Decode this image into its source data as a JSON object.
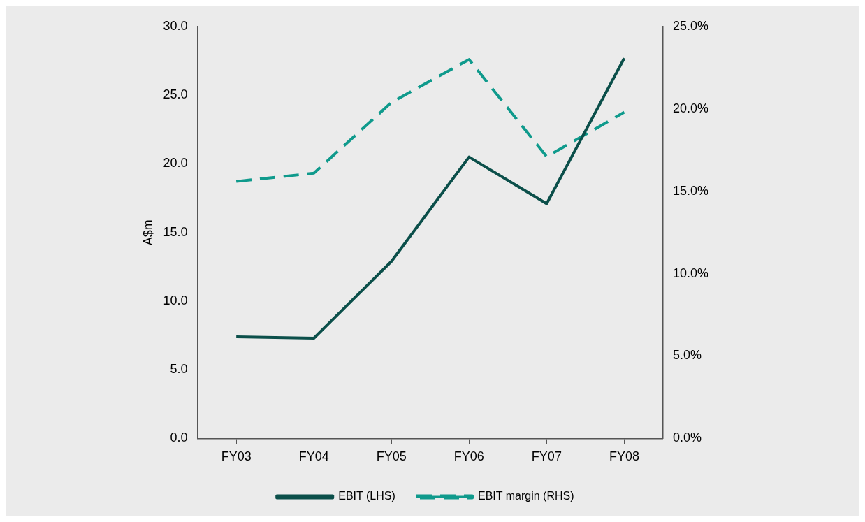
{
  "chart_data": {
    "type": "line",
    "ylabel": "A$m",
    "categories": [
      "FY03",
      "FY04",
      "FY05",
      "FY06",
      "FY07",
      "FY08"
    ],
    "series": [
      {
        "name": "EBIT (LHS)",
        "color": "#0b4f4a",
        "values": [
          7.4,
          7.3,
          12.9,
          20.5,
          17.1,
          27.7
        ],
        "line_style": "solid"
      },
      {
        "name": "EBIT margin (RHS)",
        "color": "#0f9a8c",
        "values": [
          15.6,
          16.1,
          20.4,
          23.0,
          17.1,
          19.8
        ],
        "axis": "y2",
        "line_style": "dashed"
      }
    ],
    "ylim": [
      0,
      30
    ],
    "yticks": [
      {
        "value": 0,
        "label": "0.0"
      },
      {
        "value": 5,
        "label": "5.0"
      },
      {
        "value": 10,
        "label": "10.0"
      },
      {
        "value": 15,
        "label": "15.0"
      },
      {
        "value": 20,
        "label": "20.0"
      },
      {
        "value": 25,
        "label": "25.0"
      },
      {
        "value": 30,
        "label": "30.0"
      }
    ],
    "y2lim": [
      0,
      25
    ],
    "y2ticks": [
      {
        "value": 0,
        "label": "0.0%"
      },
      {
        "value": 5,
        "label": "5.0%"
      },
      {
        "value": 10,
        "label": "10.0%"
      },
      {
        "value": 15,
        "label": "15.0%"
      },
      {
        "value": 20,
        "label": "20.0%"
      },
      {
        "value": 25,
        "label": "25.0%"
      }
    ],
    "grid": false,
    "legend": "bottom",
    "marker": "none"
  }
}
